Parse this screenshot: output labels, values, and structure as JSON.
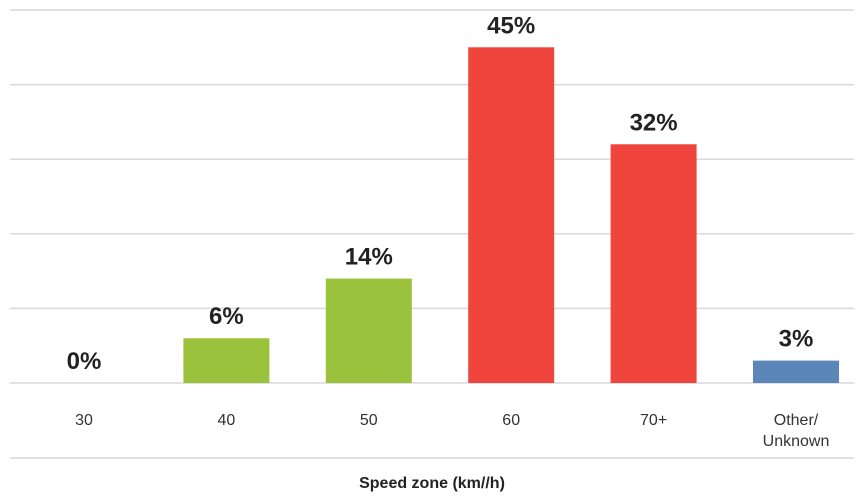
{
  "chart_data": {
    "type": "bar",
    "categories": [
      [
        "30"
      ],
      [
        "40"
      ],
      [
        "50"
      ],
      [
        "60"
      ],
      [
        "70+"
      ],
      [
        "Other/",
        "Unknown"
      ]
    ],
    "values": [
      0,
      6,
      14,
      45,
      32,
      3
    ],
    "data_labels": [
      "0%",
      "6%",
      "14%",
      "45%",
      "32%",
      "3%"
    ],
    "bar_colors": [
      "#9bc23c",
      "#9bc23c",
      "#9bc23c",
      "#f0453c",
      "#f0453c",
      "#5b86b8"
    ],
    "title": "",
    "xlabel": "Speed zone (km//h)",
    "ylabel": "",
    "ylim": [
      0,
      50
    ],
    "grid": true,
    "legend": "none"
  }
}
